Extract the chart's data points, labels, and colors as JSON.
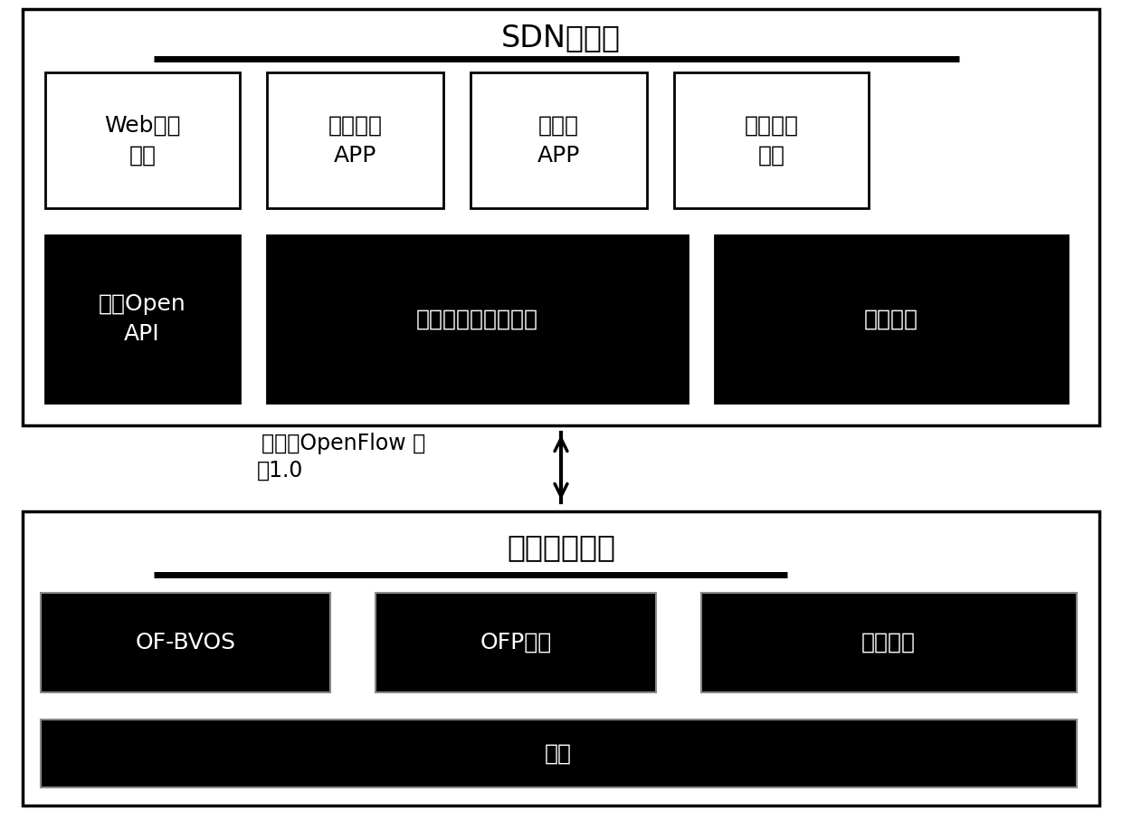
{
  "title_sdn": "SDN控制器",
  "title_infra": "基础网络架构",
  "protocol_line1": "扩展的OpenFlow 协",
  "protocol_line2": "议1.0",
  "box1_text": "Web管理\n平台",
  "box2_text": "故障检测\nAPP",
  "box3_text": "预计算\nAPP",
  "box4_text": "插件程序\n模块",
  "box5_text": "面向Open\nAPI",
  "box6_text": "网络拓扑信息数据库",
  "box7_text": "网络抽象",
  "box8_text": "OF-BVOS",
  "box9_text": "OFP模块",
  "box10_text": "网络服务",
  "box11_text": "驱动",
  "bg_color": "#ffffff",
  "black": "#000000",
  "white": "#ffffff",
  "figw": 12.4,
  "figh": 9.06,
  "dpi": 100
}
